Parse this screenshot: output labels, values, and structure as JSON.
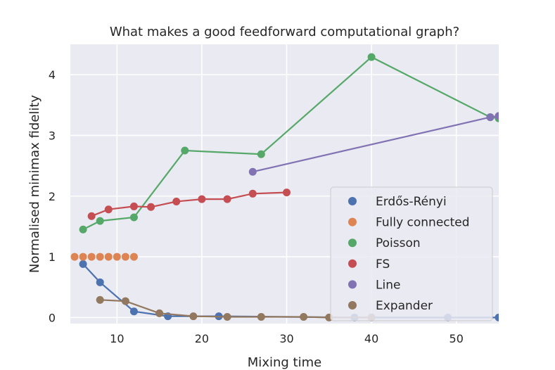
{
  "chart_data": {
    "type": "line",
    "title": "What makes a good feedforward computational graph?",
    "xlabel": "Mixing time",
    "ylabel": "Normalised minimax fidelity",
    "xlim": [
      4.5,
      55
    ],
    "ylim": [
      -0.1,
      4.5
    ],
    "xticks": [
      10,
      20,
      30,
      40,
      50
    ],
    "yticks": [
      0,
      1,
      2,
      3,
      4
    ],
    "grid": true,
    "legend_position": "lower-right",
    "series": [
      {
        "name": "Erdős-Rényi",
        "color": "#4c72b0",
        "points": [
          [
            6,
            0.88
          ],
          [
            8,
            0.58
          ],
          [
            12,
            0.1
          ],
          [
            16,
            0.02
          ],
          [
            22,
            0.02
          ],
          [
            38,
            0.0
          ],
          [
            49,
            0.0
          ],
          [
            55,
            0.0
          ]
        ]
      },
      {
        "name": "Fully connected",
        "color": "#dd8452",
        "line": false,
        "points": [
          [
            5,
            1.0
          ],
          [
            6,
            1.0
          ],
          [
            7,
            1.0
          ],
          [
            8,
            1.0
          ],
          [
            9,
            1.0
          ],
          [
            10,
            1.0
          ],
          [
            11,
            1.0
          ],
          [
            12,
            1.0
          ]
        ]
      },
      {
        "name": "Poisson",
        "color": "#55a868",
        "points": [
          [
            6,
            1.45
          ],
          [
            8,
            1.59
          ],
          [
            12,
            1.65
          ],
          [
            18,
            2.75
          ],
          [
            27,
            2.69
          ],
          [
            40,
            4.29
          ],
          [
            54,
            3.3
          ],
          [
            55,
            3.28
          ]
        ]
      },
      {
        "name": "FS",
        "color": "#c44e52",
        "points": [
          [
            7,
            1.67
          ],
          [
            9,
            1.78
          ],
          [
            12,
            1.83
          ],
          [
            14,
            1.82
          ],
          [
            17,
            1.91
          ],
          [
            20,
            1.95
          ],
          [
            23,
            1.95
          ],
          [
            26,
            2.04
          ],
          [
            30,
            2.06
          ]
        ]
      },
      {
        "name": "Line",
        "color": "#8172b3",
        "points": [
          [
            26,
            2.4
          ],
          [
            54,
            3.3
          ],
          [
            55,
            3.32
          ]
        ]
      },
      {
        "name": "Expander",
        "color": "#937860",
        "points": [
          [
            8,
            0.29
          ],
          [
            11,
            0.27
          ],
          [
            15,
            0.07
          ],
          [
            19,
            0.02
          ],
          [
            23,
            0.01
          ],
          [
            27,
            0.01
          ],
          [
            32,
            0.01
          ],
          [
            35,
            0.0
          ],
          [
            40,
            0.0
          ]
        ]
      }
    ]
  }
}
